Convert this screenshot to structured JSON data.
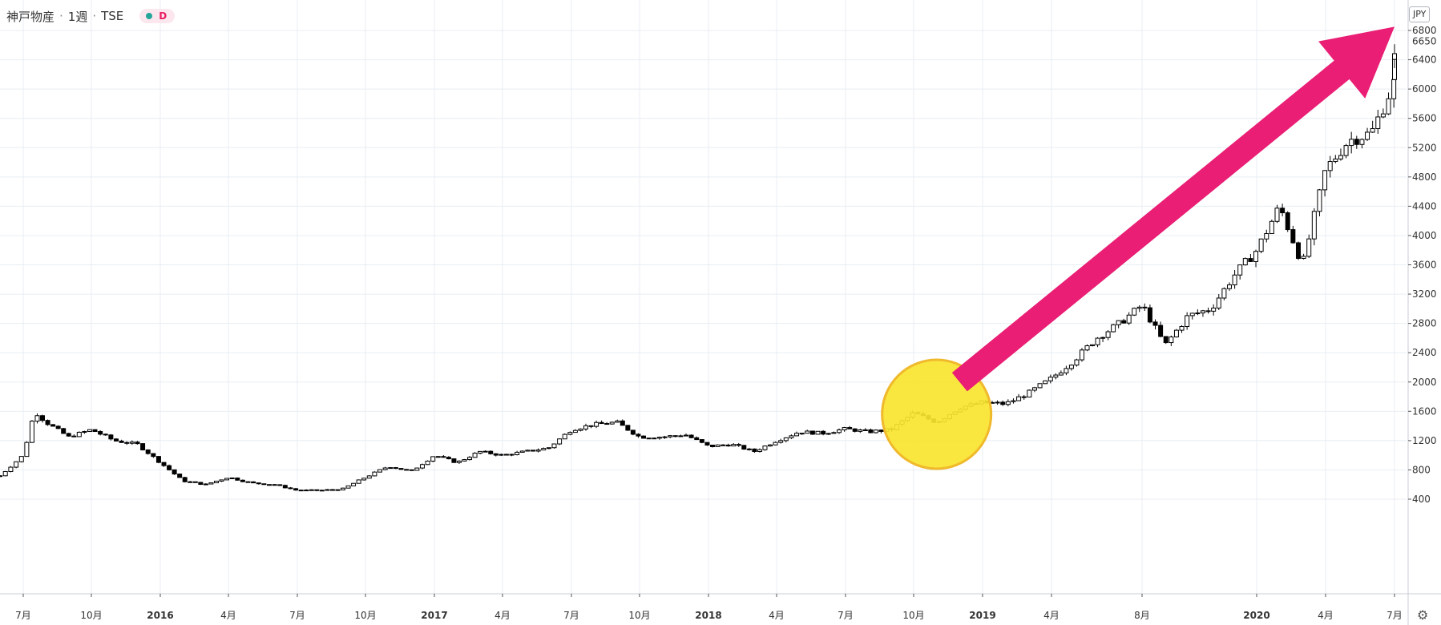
{
  "legend": {
    "name": "神戸物産",
    "interval": "1週",
    "exchange": "TSE",
    "sep": "·",
    "mode_badge": "D"
  },
  "currency_button": "JPY",
  "last_price_label": "6650",
  "colors": {
    "grid": "#e8eef3",
    "candle_border": "#000000",
    "up_fill": "#ffffff",
    "down_fill": "#000000",
    "arrow": "#e91e74",
    "highlight_fill": "#f9e42e",
    "highlight_stroke": "#f0b92c",
    "badge_dot": "#26a69a",
    "badge_text": "#e91e63"
  },
  "annotations": {
    "arrow": {
      "from": {
        "x": "2018-12",
        "y": 2000
      },
      "to": {
        "x": "2020-07",
        "y": 6850
      },
      "shape": "arrow",
      "color": "#e91e74"
    },
    "highlight": {
      "center": {
        "x": "2018-11",
        "y": 1560
      },
      "shape": "circle",
      "color": "#f9e42e"
    }
  },
  "chart_data": {
    "type": "candlestick",
    "title": "神戸物産 · 1週 · TSE",
    "interval": "weekly",
    "currency": "JPY",
    "last_price": 6650,
    "x_range": [
      "2015-06",
      "2020-07"
    ],
    "ylim": [
      200,
      6900
    ],
    "y_ticks": [
      400,
      800,
      1200,
      1600,
      2000,
      2400,
      2800,
      3200,
      3600,
      4000,
      4400,
      4800,
      5200,
      5600,
      6000,
      6400,
      6800
    ],
    "x_ticks": [
      {
        "label": "7月",
        "date": "2015-07",
        "bold": false
      },
      {
        "label": "10月",
        "date": "2015-10",
        "bold": false
      },
      {
        "label": "2016",
        "date": "2016-01",
        "bold": true
      },
      {
        "label": "4月",
        "date": "2016-04",
        "bold": false
      },
      {
        "label": "7月",
        "date": "2016-07",
        "bold": false
      },
      {
        "label": "10月",
        "date": "2016-10",
        "bold": false
      },
      {
        "label": "2017",
        "date": "2017-01",
        "bold": true
      },
      {
        "label": "4月",
        "date": "2017-04",
        "bold": false
      },
      {
        "label": "7月",
        "date": "2017-07",
        "bold": false
      },
      {
        "label": "10月",
        "date": "2017-10",
        "bold": false
      },
      {
        "label": "2018",
        "date": "2018-01",
        "bold": true
      },
      {
        "label": "4月",
        "date": "2018-04",
        "bold": false
      },
      {
        "label": "7月",
        "date": "2018-07",
        "bold": false
      },
      {
        "label": "10月",
        "date": "2018-10",
        "bold": false
      },
      {
        "label": "2019",
        "date": "2019-01",
        "bold": true
      },
      {
        "label": "4月",
        "date": "2019-04",
        "bold": false
      },
      {
        "label": "8月",
        "date": "2019-08",
        "bold": false
      },
      {
        "label": "2020",
        "date": "2020-01",
        "bold": true
      },
      {
        "label": "4月",
        "date": "2020-04",
        "bold": false
      },
      {
        "label": "7月",
        "date": "2020-07",
        "bold": false
      }
    ],
    "anchors": [
      [
        "2015-06",
        720
      ],
      [
        "2015-07",
        1000
      ],
      [
        "2015-07",
        1600
      ],
      [
        "2015-08",
        1450
      ],
      [
        "2015-09",
        1250
      ],
      [
        "2015-10",
        1350
      ],
      [
        "2015-11",
        1200
      ],
      [
        "2015-12",
        1150
      ],
      [
        "2016-01",
        900
      ],
      [
        "2016-02",
        650
      ],
      [
        "2016-03",
        600
      ],
      [
        "2016-04",
        700
      ],
      [
        "2016-05",
        620
      ],
      [
        "2016-06",
        600
      ],
      [
        "2016-07",
        520
      ],
      [
        "2016-08",
        520
      ],
      [
        "2016-09",
        540
      ],
      [
        "2016-10",
        700
      ],
      [
        "2016-11",
        850
      ],
      [
        "2016-12",
        780
      ],
      [
        "2017-01",
        1000
      ],
      [
        "2017-02",
        900
      ],
      [
        "2017-03",
        1050
      ],
      [
        "2017-04",
        1000
      ],
      [
        "2017-05",
        1050
      ],
      [
        "2017-06",
        1100
      ],
      [
        "2017-07",
        1350
      ],
      [
        "2017-08",
        1420
      ],
      [
        "2017-09",
        1450
      ],
      [
        "2017-10",
        1250
      ],
      [
        "2017-11",
        1250
      ],
      [
        "2017-12",
        1280
      ],
      [
        "2018-01",
        1120
      ],
      [
        "2018-02",
        1150
      ],
      [
        "2018-03",
        1050
      ],
      [
        "2018-04",
        1200
      ],
      [
        "2018-05",
        1320
      ],
      [
        "2018-06",
        1300
      ],
      [
        "2018-07",
        1360
      ],
      [
        "2018-08",
        1320
      ],
      [
        "2018-09",
        1350
      ],
      [
        "2018-10",
        1580
      ],
      [
        "2018-11",
        1450
      ],
      [
        "2018-12",
        1650
      ],
      [
        "2019-01",
        1720
      ],
      [
        "2019-02",
        1700
      ],
      [
        "2019-03",
        1850
      ],
      [
        "2019-04",
        2050
      ],
      [
        "2019-05",
        2300
      ],
      [
        "2019-06",
        2600
      ],
      [
        "2019-07",
        2800
      ],
      [
        "2019-08",
        3050
      ],
      [
        "2019-09",
        2500
      ],
      [
        "2019-10",
        2900
      ],
      [
        "2019-11",
        3000
      ],
      [
        "2019-12",
        3450
      ],
      [
        "2020-01",
        3800
      ],
      [
        "2020-02",
        4400
      ],
      [
        "2020-03",
        3600
      ],
      [
        "2020-04",
        4900
      ],
      [
        "2020-05",
        5300
      ],
      [
        "2020-06",
        5400
      ],
      [
        "2020-07",
        6100
      ],
      [
        "2020-07",
        6650
      ]
    ]
  }
}
